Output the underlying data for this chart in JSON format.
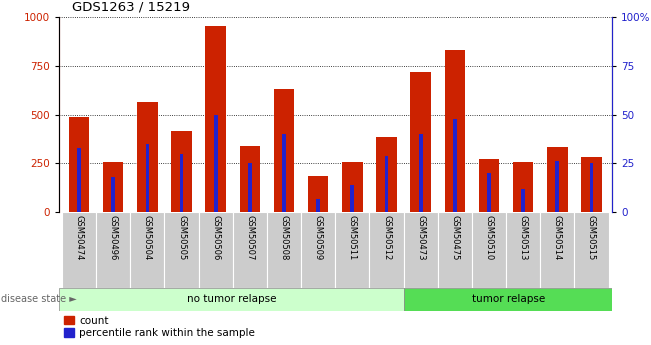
{
  "title": "GDS1263 / 15219",
  "samples": [
    "GSM50474",
    "GSM50496",
    "GSM50504",
    "GSM50505",
    "GSM50506",
    "GSM50507",
    "GSM50508",
    "GSM50509",
    "GSM50511",
    "GSM50512",
    "GSM50473",
    "GSM50475",
    "GSM50510",
    "GSM50513",
    "GSM50514",
    "GSM50515"
  ],
  "count": [
    490,
    255,
    565,
    415,
    955,
    340,
    630,
    185,
    255,
    385,
    720,
    830,
    275,
    255,
    335,
    285
  ],
  "percentile": [
    33,
    18,
    35,
    30,
    50,
    25,
    40,
    7,
    14,
    29,
    40,
    48,
    20,
    12,
    26,
    25
  ],
  "group_labels": [
    "no tumor relapse",
    "tumor relapse"
  ],
  "group_sizes": [
    10,
    6
  ],
  "ylim": [
    0,
    1000
  ],
  "right_ylim": [
    0,
    100
  ],
  "yticks_left": [
    0,
    250,
    500,
    750,
    1000
  ],
  "yticks_right": [
    0,
    25,
    50,
    75,
    100
  ],
  "bar_color": "#cc2200",
  "percentile_color": "#2222cc",
  "tick_area_color": "#c8c8c8",
  "group1_color": "#ccffcc",
  "group2_color": "#55dd55",
  "bar_width": 0.6
}
